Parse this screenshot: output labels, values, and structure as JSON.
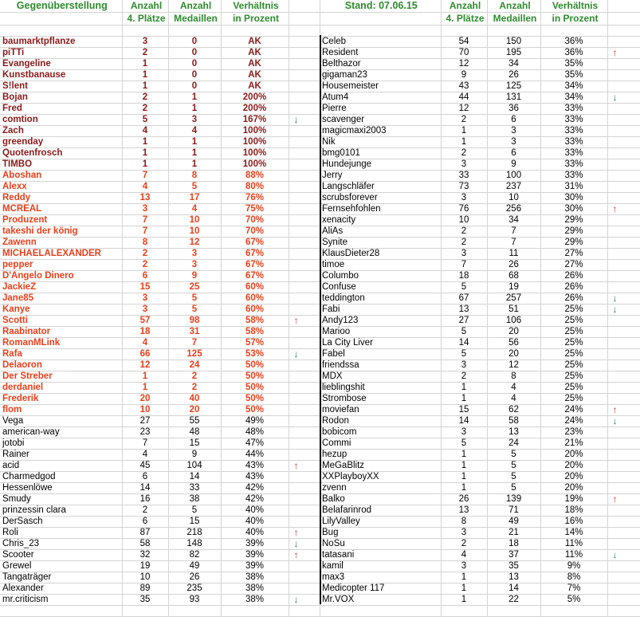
{
  "colors": {
    "header": "#2e8b2e",
    "tier_top": "#8b1a1a",
    "tier_mid": "#e8401c",
    "tier_normal": "#000000",
    "arrow_up": "#e82828",
    "arrow_down": "#2a7a4a"
  },
  "left": {
    "header": {
      "title": "Gegenüberstellung",
      "col1": [
        "Anzahl",
        "4. Plätze"
      ],
      "col2": [
        "Anzahl",
        "Medaillen"
      ],
      "col3": [
        "Verhältnis",
        "in Prozent"
      ]
    },
    "rows": [
      [
        "baumarktpflanze",
        "3",
        "0",
        "AK",
        "",
        "top"
      ],
      [
        "piTTi",
        "2",
        "0",
        "AK",
        "",
        "top"
      ],
      [
        "Evangeline",
        "1",
        "0",
        "AK",
        "",
        "top"
      ],
      [
        "Kunstbanause",
        "1",
        "0",
        "AK",
        "",
        "top"
      ],
      [
        "S!lent",
        "1",
        "0",
        "AK",
        "",
        "top"
      ],
      [
        "Bojan",
        "2",
        "1",
        "200%",
        "",
        "top"
      ],
      [
        "Fred",
        "2",
        "1",
        "200%",
        "",
        "top"
      ],
      [
        "comtion",
        "5",
        "3",
        "167%",
        "down",
        "top"
      ],
      [
        "Zach",
        "4",
        "4",
        "100%",
        "",
        "top"
      ],
      [
        "greenday",
        "1",
        "1",
        "100%",
        "",
        "top"
      ],
      [
        "Quotenfrosch",
        "1",
        "1",
        "100%",
        "",
        "top"
      ],
      [
        "TIMBO",
        "1",
        "1",
        "100%",
        "",
        "top"
      ],
      [
        "Aboshan",
        "7",
        "8",
        "88%",
        "",
        "mid"
      ],
      [
        "Alexx",
        "4",
        "5",
        "80%",
        "",
        "mid"
      ],
      [
        "Reddy",
        "13",
        "17",
        "76%",
        "",
        "mid"
      ],
      [
        "MCREAL",
        "3",
        "4",
        "75%",
        "",
        "mid"
      ],
      [
        "Produzent",
        "7",
        "10",
        "70%",
        "",
        "mid"
      ],
      [
        "takeshi der könig",
        "7",
        "10",
        "70%",
        "",
        "mid"
      ],
      [
        "Zawenn",
        "8",
        "12",
        "67%",
        "",
        "mid"
      ],
      [
        "MICHAELALEXANDER",
        "2",
        "3",
        "67%",
        "",
        "mid"
      ],
      [
        "pepper",
        "2",
        "3",
        "67%",
        "",
        "mid"
      ],
      [
        "D'Angelo Dinero",
        "6",
        "9",
        "67%",
        "",
        "mid"
      ],
      [
        "JackieZ",
        "15",
        "25",
        "60%",
        "",
        "mid"
      ],
      [
        "Jane85",
        "3",
        "5",
        "60%",
        "",
        "mid"
      ],
      [
        "Kanye",
        "3",
        "5",
        "60%",
        "",
        "mid"
      ],
      [
        "Scotti",
        "57",
        "98",
        "58%",
        "up",
        "mid"
      ],
      [
        "Raabinator",
        "18",
        "31",
        "58%",
        "",
        "mid"
      ],
      [
        "RomanMLink",
        "4",
        "7",
        "57%",
        "",
        "mid"
      ],
      [
        "Rafa",
        "66",
        "125",
        "53%",
        "down",
        "mid"
      ],
      [
        "Delaoron",
        "12",
        "24",
        "50%",
        "",
        "mid"
      ],
      [
        "Der Streber",
        "1",
        "2",
        "50%",
        "",
        "mid"
      ],
      [
        "derdaniel",
        "1",
        "2",
        "50%",
        "",
        "mid"
      ],
      [
        "Frederik",
        "20",
        "40",
        "50%",
        "",
        "mid"
      ],
      [
        "flom",
        "10",
        "20",
        "50%",
        "",
        "mid"
      ],
      [
        "Vega",
        "27",
        "55",
        "49%",
        "",
        "normal"
      ],
      [
        "american-way",
        "23",
        "48",
        "48%",
        "",
        "normal"
      ],
      [
        "jotobi",
        "7",
        "15",
        "47%",
        "",
        "normal"
      ],
      [
        "Rainer",
        "4",
        "9",
        "44%",
        "",
        "normal"
      ],
      [
        "acid",
        "45",
        "104",
        "43%",
        "up",
        "normal"
      ],
      [
        "Charmedgod",
        "6",
        "14",
        "43%",
        "",
        "normal"
      ],
      [
        "Hessenlöwe",
        "14",
        "33",
        "42%",
        "",
        "normal"
      ],
      [
        "Smudy",
        "16",
        "38",
        "42%",
        "",
        "normal"
      ],
      [
        "prinzessin clara",
        "2",
        "5",
        "40%",
        "",
        "normal"
      ],
      [
        "DerSasch",
        "6",
        "15",
        "40%",
        "",
        "normal"
      ],
      [
        "Roli",
        "87",
        "218",
        "40%",
        "up",
        "normal"
      ],
      [
        "Chris_23",
        "58",
        "148",
        "39%",
        "down",
        "normal"
      ],
      [
        "Scooter",
        "32",
        "82",
        "39%",
        "up",
        "normal"
      ],
      [
        "Grewel",
        "19",
        "49",
        "39%",
        "",
        "normal"
      ],
      [
        "Tangaträger",
        "10",
        "26",
        "38%",
        "",
        "normal"
      ],
      [
        "Alexander",
        "89",
        "235",
        "38%",
        "",
        "normal"
      ],
      [
        "mr.criticism",
        "35",
        "93",
        "38%",
        "down",
        "normal"
      ]
    ]
  },
  "right": {
    "header": {
      "title": "Stand: 07.06.15",
      "col1": [
        "Anzahl",
        "4. Plätze"
      ],
      "col2": [
        "Anzahl",
        "Medaillen"
      ],
      "col3": [
        "Verhältnis",
        "in Prozent"
      ]
    },
    "rows": [
      [
        "Celeb",
        "54",
        "150",
        "36%",
        "",
        "normal"
      ],
      [
        "Resident",
        "70",
        "195",
        "36%",
        "up",
        "normal"
      ],
      [
        "Belthazor",
        "12",
        "34",
        "35%",
        "",
        "normal"
      ],
      [
        "gigaman23",
        "9",
        "26",
        "35%",
        "",
        "normal"
      ],
      [
        "Housemeister",
        "43",
        "125",
        "34%",
        "",
        "normal"
      ],
      [
        "Atum4",
        "44",
        "131",
        "34%",
        "down",
        "normal"
      ],
      [
        "Pierre",
        "12",
        "36",
        "33%",
        "",
        "normal"
      ],
      [
        "scavenger",
        "2",
        "6",
        "33%",
        "",
        "normal"
      ],
      [
        "magicmaxi2003",
        "1",
        "3",
        "33%",
        "",
        "normal"
      ],
      [
        "Nik",
        "1",
        "3",
        "33%",
        "",
        "normal"
      ],
      [
        "bmg0101",
        "2",
        "6",
        "33%",
        "",
        "normal"
      ],
      [
        "Hundejunge",
        "3",
        "9",
        "33%",
        "",
        "normal"
      ],
      [
        "Jerry",
        "33",
        "100",
        "33%",
        "",
        "normal"
      ],
      [
        "Langschläfer",
        "73",
        "237",
        "31%",
        "",
        "normal"
      ],
      [
        "scrubsforever",
        "3",
        "10",
        "30%",
        "",
        "normal"
      ],
      [
        "Fernsehfohlen",
        "76",
        "256",
        "30%",
        "up",
        "normal"
      ],
      [
        "xenacity",
        "10",
        "34",
        "29%",
        "",
        "normal"
      ],
      [
        "AliAs",
        "2",
        "7",
        "29%",
        "",
        "normal"
      ],
      [
        "Synite",
        "2",
        "7",
        "29%",
        "",
        "normal"
      ],
      [
        "KlausDieter28",
        "3",
        "11",
        "27%",
        "",
        "normal"
      ],
      [
        "timoe",
        "7",
        "26",
        "27%",
        "",
        "normal"
      ],
      [
        "Columbo",
        "18",
        "68",
        "26%",
        "",
        "normal"
      ],
      [
        "Confuse",
        "5",
        "19",
        "26%",
        "",
        "normal"
      ],
      [
        "teddington",
        "67",
        "257",
        "26%",
        "down",
        "normal"
      ],
      [
        "Fabi",
        "13",
        "51",
        "25%",
        "down",
        "normal"
      ],
      [
        "Andy123",
        "27",
        "106",
        "25%",
        "",
        "normal"
      ],
      [
        "Marioo",
        "5",
        "20",
        "25%",
        "",
        "normal"
      ],
      [
        "La City Liver",
        "14",
        "56",
        "25%",
        "",
        "normal"
      ],
      [
        "Fabel",
        "5",
        "20",
        "25%",
        "",
        "normal"
      ],
      [
        "friendssa",
        "3",
        "12",
        "25%",
        "",
        "normal"
      ],
      [
        "MDX",
        "2",
        "8",
        "25%",
        "",
        "normal"
      ],
      [
        "lieblingshit",
        "1",
        "4",
        "25%",
        "",
        "normal"
      ],
      [
        "Strombose",
        "1",
        "4",
        "25%",
        "",
        "normal"
      ],
      [
        "moviefan",
        "15",
        "62",
        "24%",
        "up",
        "normal"
      ],
      [
        "Rodon",
        "14",
        "58",
        "24%",
        "down",
        "normal"
      ],
      [
        "bobicom",
        "3",
        "13",
        "23%",
        "",
        "normal"
      ],
      [
        "Commi",
        "5",
        "24",
        "21%",
        "",
        "normal"
      ],
      [
        "hezup",
        "1",
        "5",
        "20%",
        "",
        "normal"
      ],
      [
        "MeGaBlitz",
        "1",
        "5",
        "20%",
        "",
        "normal"
      ],
      [
        "XXPlayboyXX",
        "1",
        "5",
        "20%",
        "",
        "normal"
      ],
      [
        "zvenn",
        "1",
        "5",
        "20%",
        "",
        "normal"
      ],
      [
        "Balko",
        "26",
        "139",
        "19%",
        "up",
        "normal"
      ],
      [
        "Belafarinrod",
        "13",
        "71",
        "18%",
        "",
        "normal"
      ],
      [
        "LilyValley",
        "8",
        "49",
        "16%",
        "",
        "normal"
      ],
      [
        "Bug",
        "3",
        "21",
        "14%",
        "",
        "normal"
      ],
      [
        "NoSu",
        "2",
        "18",
        "11%",
        "",
        "normal"
      ],
      [
        "tatasani",
        "4",
        "37",
        "11%",
        "down",
        "normal"
      ],
      [
        "kamil",
        "3",
        "35",
        "9%",
        "",
        "normal"
      ],
      [
        "max3",
        "1",
        "13",
        "8%",
        "",
        "normal"
      ],
      [
        "Medicopter 117",
        "1",
        "14",
        "7%",
        "",
        "normal"
      ],
      [
        "Mr.VOX",
        "1",
        "22",
        "5%",
        "",
        "normal"
      ]
    ]
  },
  "arrow_glyphs": {
    "up": "🡑",
    "down": "🡓"
  }
}
